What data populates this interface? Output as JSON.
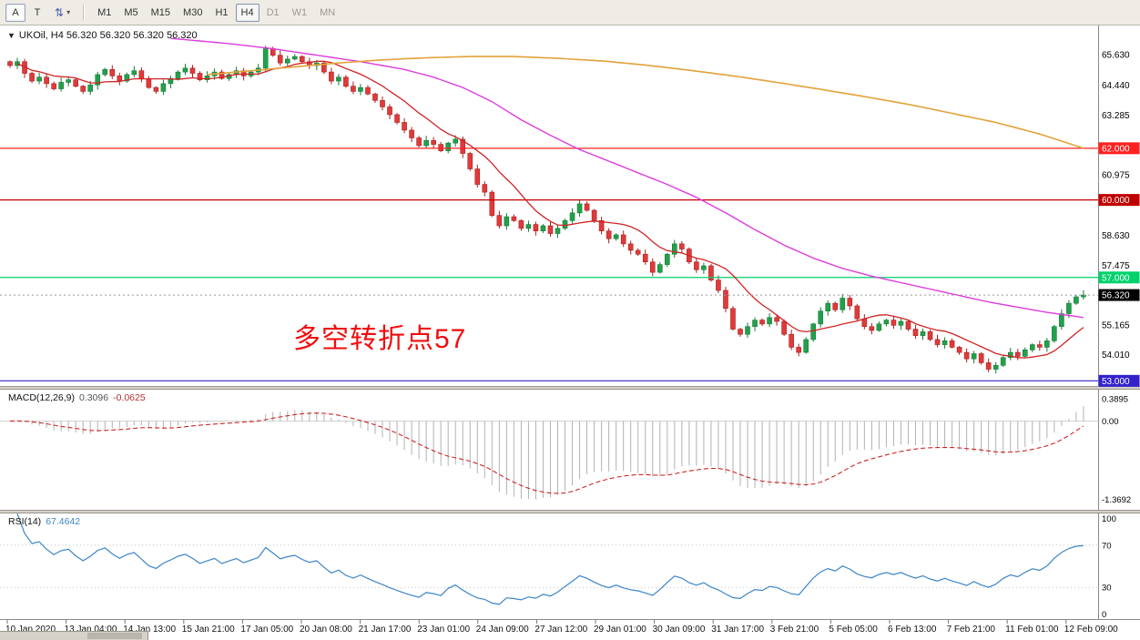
{
  "toolbar": {
    "tools": [
      {
        "id": "annotation-letter-tool",
        "label": "A",
        "pressed": true,
        "has_dropdown": false
      },
      {
        "id": "text-cursor-tool",
        "label": "T",
        "pressed": false,
        "has_dropdown": false
      },
      {
        "id": "cursor-mode-selector",
        "label": "⇅",
        "pressed": false,
        "has_dropdown": true
      }
    ],
    "timeframes": [
      {
        "label": "M1"
      },
      {
        "label": "M5"
      },
      {
        "label": "M15"
      },
      {
        "label": "M30"
      },
      {
        "label": "H1"
      },
      {
        "label": "H4",
        "active": true
      },
      {
        "label": "D1",
        "muted": true
      },
      {
        "label": "W1",
        "muted": true
      },
      {
        "label": "MN",
        "muted": true
      }
    ]
  },
  "chart": {
    "expander": "▼",
    "title": "UKOil, H4 56.320 56.320 56.320 56.320",
    "annotation": {
      "text": "多空转折点57",
      "color": "#f20d0d"
    }
  },
  "chart_data": {
    "type": "candlestick",
    "symbol": "UKOil",
    "timeframe": "H4",
    "price_axis": {
      "min": 52.8,
      "max": 66.75,
      "grid_labels": [
        {
          "text": "65.630",
          "value": 65.63
        },
        {
          "text": "64.440",
          "value": 64.44
        },
        {
          "text": "63.285",
          "value": 63.285
        },
        {
          "text": "60.975",
          "value": 60.975
        },
        {
          "text": "58.630",
          "value": 58.63
        },
        {
          "text": "57.475",
          "value": 57.475
        },
        {
          "text": "55.165",
          "value": 55.165
        },
        {
          "text": "54.010",
          "value": 54.01
        }
      ]
    },
    "levels": [
      {
        "value": 62.0,
        "label": "62.000",
        "color": "#ff2020"
      },
      {
        "value": 60.0,
        "label": "60.000",
        "color": "#c00000"
      },
      {
        "value": 57.0,
        "label": "57.000",
        "color": "#00d26a"
      },
      {
        "value": 53.0,
        "label": "53.000",
        "color": "#3322cc"
      }
    ],
    "current_price": {
      "value": 56.32,
      "label": "56.320",
      "bg": "#000000"
    },
    "closes": [
      65.2,
      65.35,
      64.9,
      64.6,
      64.75,
      64.5,
      64.3,
      64.55,
      64.65,
      64.4,
      64.2,
      64.45,
      64.85,
      65.05,
      64.8,
      64.6,
      64.85,
      65.0,
      64.7,
      64.35,
      64.2,
      64.5,
      64.7,
      64.95,
      65.1,
      64.9,
      64.65,
      64.8,
      64.95,
      64.7,
      64.85,
      65.0,
      64.8,
      64.95,
      65.1,
      65.85,
      65.6,
      65.3,
      65.45,
      65.55,
      65.35,
      65.2,
      65.3,
      64.95,
      64.6,
      64.75,
      64.4,
      64.2,
      64.35,
      64.1,
      63.85,
      63.6,
      63.3,
      63.0,
      62.7,
      62.4,
      62.1,
      62.3,
      62.15,
      61.9,
      62.2,
      62.35,
      61.8,
      61.2,
      60.6,
      60.3,
      59.4,
      59.0,
      59.35,
      59.2,
      58.9,
      59.05,
      58.8,
      59.0,
      58.7,
      58.9,
      59.2,
      59.5,
      59.85,
      59.6,
      59.2,
      58.8,
      58.5,
      58.65,
      58.3,
      58.05,
      57.9,
      57.6,
      57.2,
      57.5,
      57.9,
      58.3,
      58.1,
      57.6,
      57.3,
      57.45,
      56.9,
      56.5,
      55.8,
      55.0,
      54.8,
      55.1,
      55.35,
      55.2,
      55.45,
      55.3,
      54.8,
      54.3,
      54.1,
      54.6,
      55.2,
      55.7,
      56.0,
      55.75,
      56.2,
      55.9,
      55.4,
      55.1,
      54.95,
      55.2,
      55.35,
      55.15,
      55.3,
      55.0,
      54.75,
      54.9,
      54.6,
      54.4,
      54.55,
      54.3,
      54.1,
      53.85,
      54.05,
      53.7,
      53.45,
      53.6,
      53.9,
      54.1,
      53.95,
      54.2,
      54.4,
      54.3,
      54.55,
      55.1,
      55.6,
      56.0,
      56.25,
      56.32
    ],
    "ma_fast": {
      "type": "sma",
      "period": 10,
      "color": "#cf2424"
    },
    "ma_medium": {
      "color": "#dd3cdd",
      "points": [
        [
          22,
          66.25
        ],
        [
          30,
          66.05
        ],
        [
          36,
          65.85
        ],
        [
          42,
          65.6
        ],
        [
          48,
          65.35
        ],
        [
          54,
          65.05
        ],
        [
          58,
          64.75
        ],
        [
          62,
          64.35
        ],
        [
          66,
          63.8
        ],
        [
          70,
          63.1
        ],
        [
          74,
          62.5
        ],
        [
          78,
          61.95
        ],
        [
          82,
          61.5
        ],
        [
          86,
          61.05
        ],
        [
          90,
          60.6
        ],
        [
          94,
          60.1
        ],
        [
          98,
          59.5
        ],
        [
          102,
          58.85
        ],
        [
          106,
          58.25
        ],
        [
          110,
          57.75
        ],
        [
          114,
          57.35
        ],
        [
          118,
          57.05
        ],
        [
          122,
          56.8
        ],
        [
          126,
          56.55
        ],
        [
          130,
          56.3
        ],
        [
          134,
          56.05
        ],
        [
          138,
          55.85
        ],
        [
          142,
          55.65
        ],
        [
          147,
          55.45
        ]
      ]
    },
    "ma_slow": {
      "color": "#e3a23a",
      "points": [
        [
          27,
          64.85
        ],
        [
          33,
          65.0
        ],
        [
          39,
          65.15
        ],
        [
          45,
          65.3
        ],
        [
          51,
          65.42
        ],
        [
          57,
          65.5
        ],
        [
          63,
          65.55
        ],
        [
          69,
          65.55
        ],
        [
          75,
          65.48
        ],
        [
          81,
          65.38
        ],
        [
          87,
          65.22
        ],
        [
          93,
          65.02
        ],
        [
          99,
          64.8
        ],
        [
          105,
          64.55
        ],
        [
          111,
          64.28
        ],
        [
          117,
          64.0
        ],
        [
          123,
          63.7
        ],
        [
          129,
          63.35
        ],
        [
          135,
          63.0
        ],
        [
          141,
          62.55
        ],
        [
          147,
          62.0
        ]
      ]
    },
    "macd": {
      "name": "MACD(12,26,9)",
      "value_main": "0.3096",
      "value_signal": "-0.0625",
      "fast": 12,
      "slow": 26,
      "signal": 9,
      "hist_color": "#b2b2b2",
      "signal_color": "#cf2424",
      "scale": [
        {
          "text": "0.3895",
          "value": 0.3895
        },
        {
          "text": "0.00",
          "value": 0
        },
        {
          "text": "-1.3692",
          "value": -1.3692
        }
      ]
    },
    "rsi": {
      "name": "RSI(14)",
      "value": "67.4642",
      "period": 14,
      "color": "#3d85c6",
      "guide_levels": [
        70,
        30
      ],
      "scale": [
        {
          "text": "100",
          "value": 100
        },
        {
          "text": "70",
          "value": 70
        },
        {
          "text": "30",
          "value": 30
        },
        {
          "text": "0",
          "value": 0
        }
      ]
    },
    "time_labels": [
      "10 Jan 2020",
      "13 Jan 04:00",
      "14 Jan 13:00",
      "15 Jan 21:00",
      "17 Jan 05:00",
      "20 Jan 08:00",
      "21 Jan 17:00",
      "23 Jan 01:00",
      "24 Jan 09:00",
      "27 Jan 12:00",
      "29 Jan 01:00",
      "30 Jan 09:00",
      "31 Jan 17:00",
      "3 Feb 21:00",
      "5 Feb 05:00",
      "6 Feb 13:00",
      "7 Feb 21:00",
      "11 Feb 01:00",
      "12 Feb 09:00"
    ]
  }
}
